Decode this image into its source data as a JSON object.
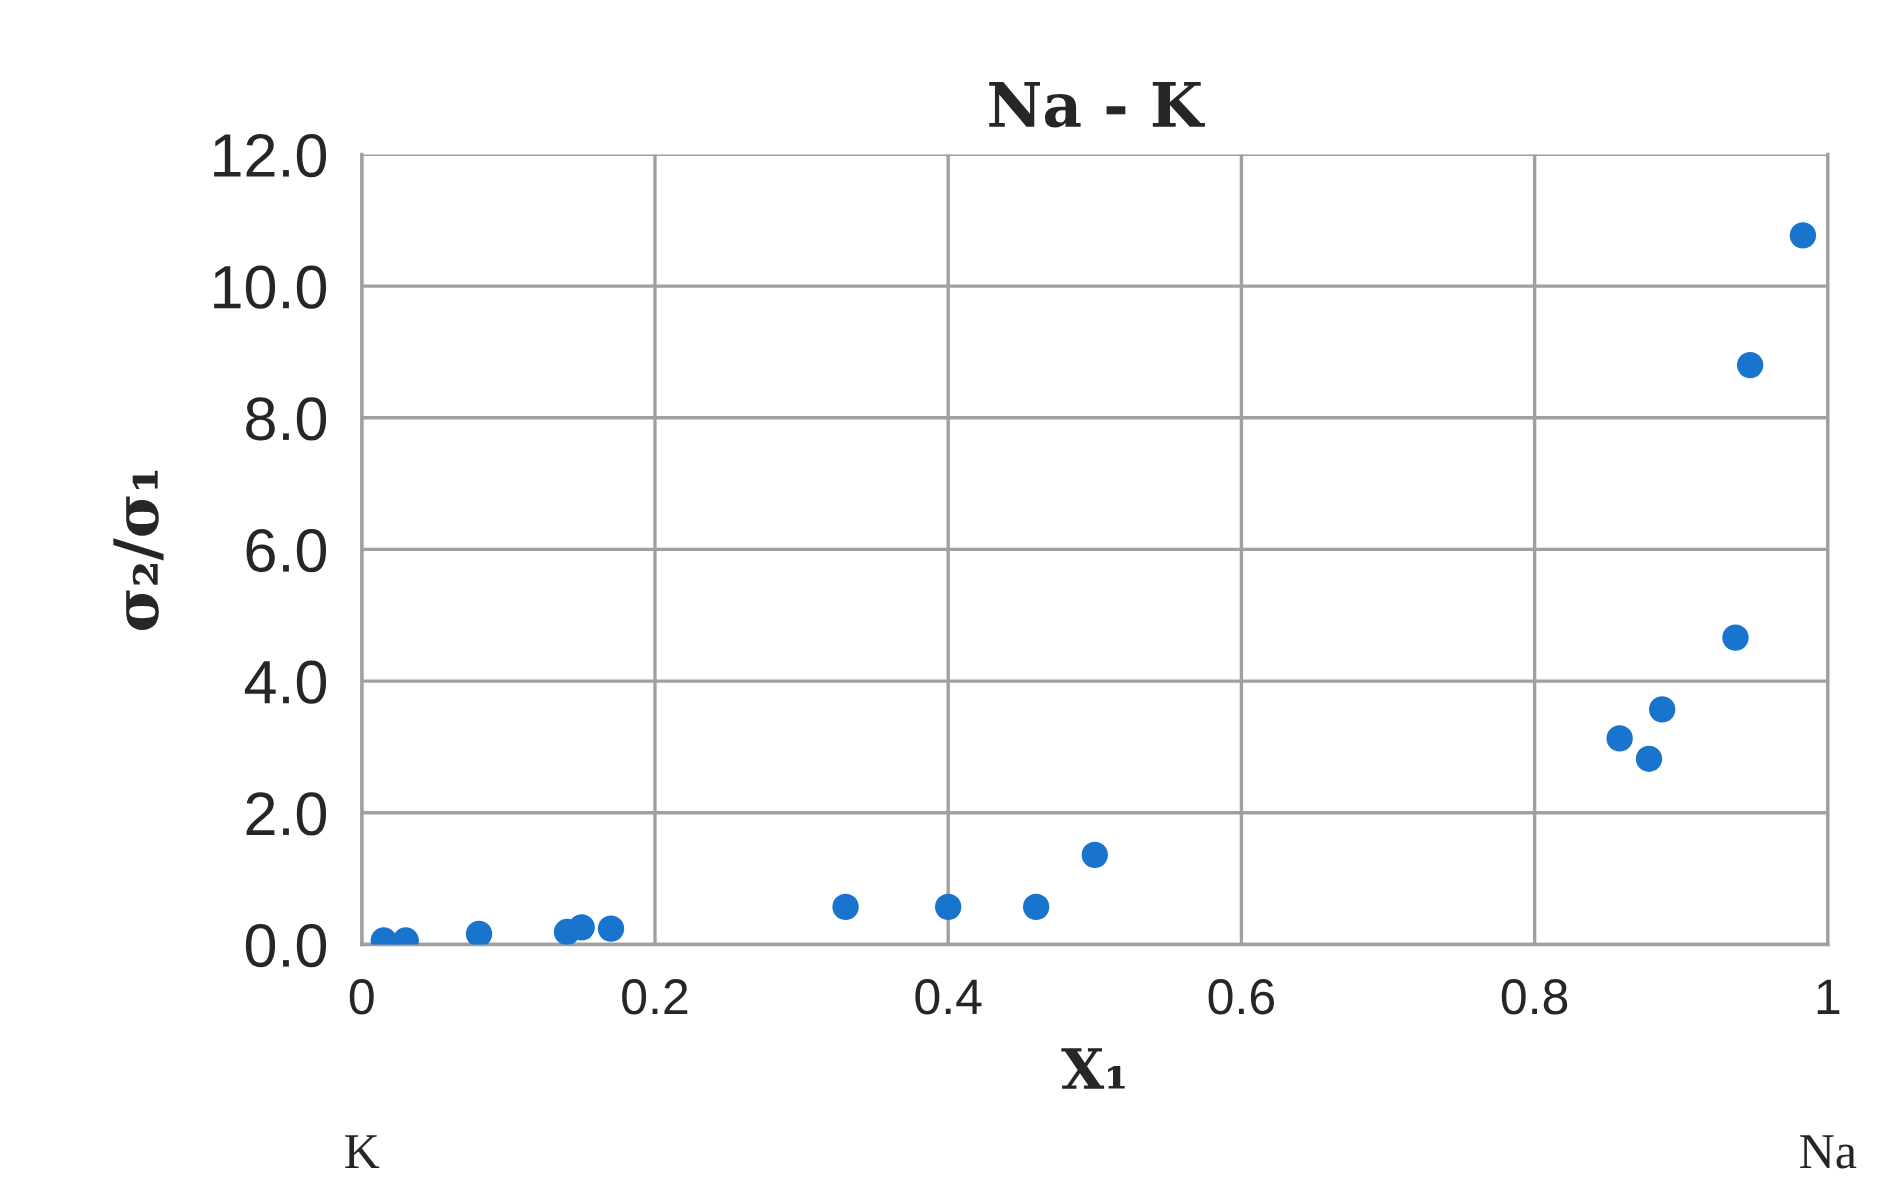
{
  "chart_data": {
    "type": "scatter",
    "title": "Na - K",
    "xlabel": "X₁",
    "ylabel": "σ₂/σ₁",
    "x": [
      0.015,
      0.03,
      0.08,
      0.14,
      0.15,
      0.17,
      0.33,
      0.4,
      0.46,
      0.5,
      0.858,
      0.878,
      0.887,
      0.937,
      0.947,
      0.983
    ],
    "values": [
      0.06,
      0.06,
      0.16,
      0.19,
      0.26,
      0.24,
      0.57,
      0.57,
      0.57,
      1.36,
      3.13,
      2.82,
      3.57,
      4.66,
      8.8,
      10.77
    ],
    "color": "#1874cd",
    "marker": "circle",
    "xlim": [
      0,
      1
    ],
    "ylim": [
      0,
      12
    ],
    "xticks": [
      0,
      0.2,
      0.4,
      0.6,
      0.8,
      1
    ],
    "yticks": [
      {
        "value": 0,
        "label": "0.0"
      },
      {
        "value": 2,
        "label": "2.0"
      },
      {
        "value": 4,
        "label": "4.0"
      },
      {
        "value": 6,
        "label": "6.0"
      },
      {
        "value": 8,
        "label": "8.0"
      },
      {
        "value": 10,
        "label": "10.0"
      },
      {
        "value": 12,
        "label": "12.0"
      }
    ],
    "grid": true,
    "annotations": [
      "K",
      "Na"
    ]
  }
}
